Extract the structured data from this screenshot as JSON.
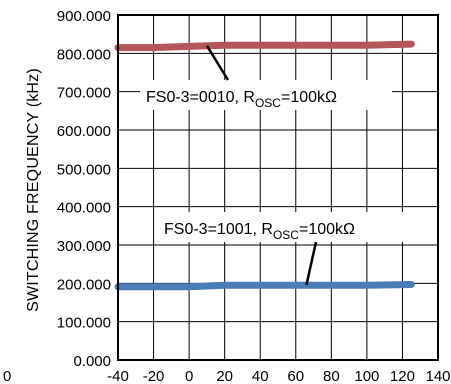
{
  "chart_data": {
    "type": "line",
    "ylabel": "SWITCHING FREQUENCY (kHz)",
    "xlabel": "",
    "xlim": [
      -40,
      140
    ],
    "ylim": [
      0,
      900
    ],
    "x_ticks": [
      -40,
      -20,
      0,
      20,
      40,
      60,
      80,
      100,
      120,
      140
    ],
    "x_tick_labels": [
      "-40",
      "-20",
      "0",
      "20",
      "40",
      "60",
      "80",
      "100",
      "120",
      "140"
    ],
    "y_ticks": [
      0,
      100,
      200,
      300,
      400,
      500,
      600,
      700,
      800,
      900
    ],
    "y_tick_labels": [
      "0.000",
      "100.000",
      "200.000",
      "300.000",
      "400.000",
      "500.000",
      "600.000",
      "700.000",
      "800.000",
      "900.000"
    ],
    "stray_tick_label": "0",
    "grid": true,
    "series": [
      {
        "color": "#b5565a",
        "x": [
          -40,
          -20,
          0,
          20,
          40,
          60,
          80,
          100,
          125
        ],
        "y": [
          815,
          815,
          818,
          821,
          821,
          821,
          821,
          821,
          824
        ]
      },
      {
        "color": "#4a7cb5",
        "x": [
          -40,
          -20,
          0,
          20,
          40,
          60,
          80,
          100,
          125
        ],
        "y": [
          191,
          191,
          191,
          195,
          195,
          195,
          195,
          195,
          197
        ]
      }
    ],
    "annotations": [
      {
        "prefix": "FS0-3=0010, R",
        "subscript": "OSC",
        "suffix": "=100kΩ",
        "point_x": 10,
        "point_y": 820
      },
      {
        "prefix": "FS0-3=1001, R",
        "subscript": "OSC",
        "suffix": "=100kΩ",
        "point_x": 66,
        "point_y": 196
      }
    ]
  }
}
